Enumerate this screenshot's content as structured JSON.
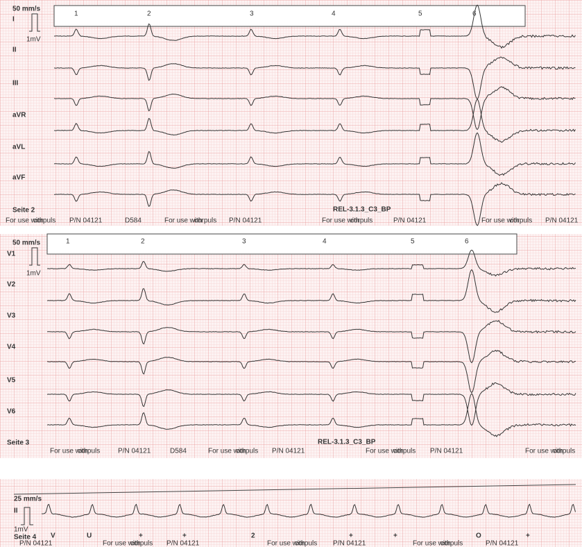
{
  "panels": [
    {
      "speed": "50 mm/s",
      "calibration": "1mV",
      "markers": [
        "1",
        "2",
        "3",
        "4",
        "5",
        "6"
      ],
      "leads": [
        "I",
        "II",
        "III",
        "aVR",
        "aVL",
        "aVF"
      ],
      "page": "Seite 2",
      "code": "REL-3.1.3_C3_BP",
      "footer": [
        "For use with",
        "corpuls",
        "P/N 04121",
        "D584",
        "For use with",
        "corpuls",
        "P/N 04121",
        "For use with",
        "corpuls",
        "P/N 04121",
        "For use with",
        "corpuls",
        "P/N 04121"
      ]
    },
    {
      "speed": "50 mm/s",
      "calibration": "1mV",
      "markers": [
        "1",
        "2",
        "3",
        "4",
        "5",
        "6"
      ],
      "leads": [
        "V1",
        "V2",
        "V3",
        "V4",
        "V5",
        "V6"
      ],
      "page": "Seite 3",
      "code": "REL-3.1.3_C3_BP",
      "footer": [
        "For use with",
        "corpuls",
        "P/N 04121",
        "D584",
        "For use with",
        "corpuls",
        "P/N 04121",
        "For use with",
        "corpuls",
        "P/N 04121",
        "For use with",
        "corpuls"
      ]
    },
    {
      "speed": "25 mm/s",
      "calibration": "1mV",
      "leads": [
        "II"
      ],
      "page": "Seite 4",
      "beat_marks": [
        "V",
        "U",
        "+",
        "+",
        "2",
        "+",
        "+",
        "O",
        "+"
      ],
      "footer": [
        "P/N 04121",
        "For use with",
        "corpuls",
        "P/N 04121",
        "For use with",
        "corpuls",
        "P/N 04121",
        "For use with",
        "corpuls",
        "P/N 04121"
      ]
    }
  ]
}
